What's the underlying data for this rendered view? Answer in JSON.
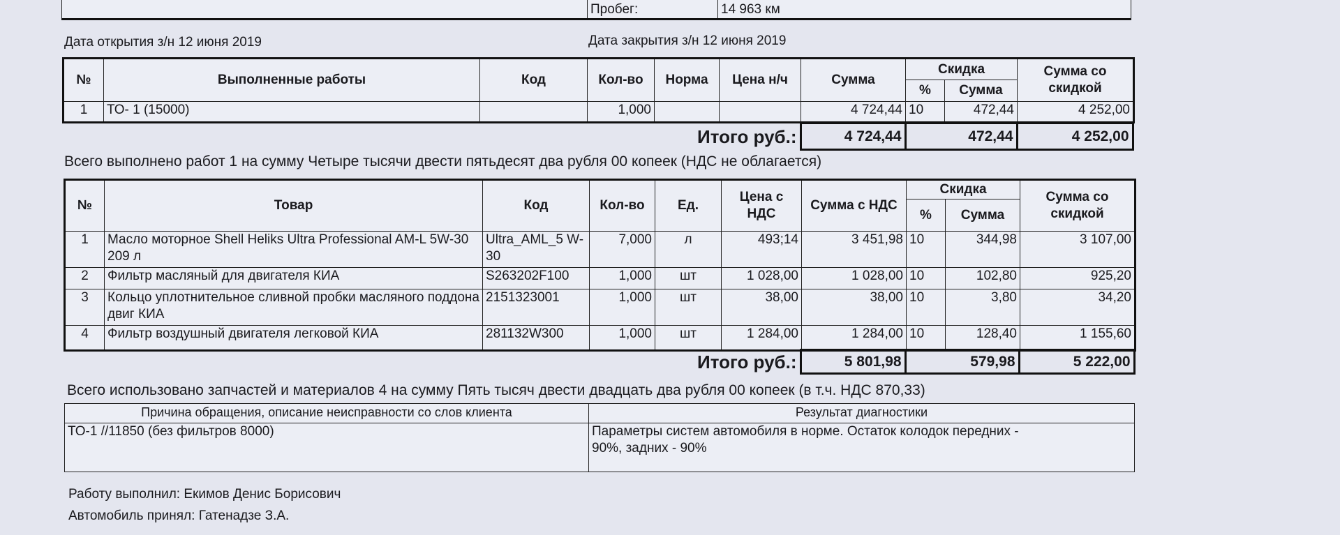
{
  "top": {
    "mileage_label": "Пробег:",
    "mileage_value": "14 963 км"
  },
  "dates": {
    "open": "Дата открытия з/н 12 июня 2019",
    "close": "Дата закрытия з/н 12 июня 2019"
  },
  "works": {
    "headers": {
      "num": "№",
      "name": "Выполненные работы",
      "code": "Код",
      "qty": "Кол-во",
      "norm": "Норма",
      "price": "Цена н/ч",
      "sum": "Сумма",
      "discount": "Скидка",
      "disc_pct": "%",
      "disc_sum": "Сумма",
      "sum_disc": "Сумма со скидкой"
    },
    "rows": [
      {
        "num": "1",
        "name": "ТО- 1 (15000)",
        "code": "",
        "qty": "1,000",
        "norm": "",
        "price": "",
        "sum": "4 724,44",
        "pct": "10",
        "disc": "472,44",
        "total": "4 252,00"
      }
    ],
    "total_label": "Итого руб.:",
    "total_sum": "4 724,44",
    "total_disc": "472,44",
    "total_final": "4 252,00",
    "summary": "Всего выполнено работ 1 на сумму Четыре тысячи двести пятьдесят два рубля 00 копеек (НДС не облагается)"
  },
  "goods": {
    "headers": {
      "num": "№",
      "name": "Товар",
      "code": "Код",
      "qty": "Кол-во",
      "unit": "Ед.",
      "price": "Цена с НДС",
      "sum": "Сумма с НДС",
      "discount": "Скидка",
      "disc_pct": "%",
      "disc_sum": "Сумма",
      "sum_disc": "Сумма со скидкой"
    },
    "rows": [
      {
        "num": "1",
        "name": "Масло моторное Shell Heliks Ultra Professional AM-L 5W-30 209 л",
        "code": "Ultra_AML_5 W-30",
        "qty": "7,000",
        "unit": "л",
        "price": "493;14",
        "sum": "3 451,98",
        "pct": "10",
        "disc": "344,98",
        "total": "3 107,00"
      },
      {
        "num": "2",
        "name": "Фильтр масляный для двигателя КИА",
        "code": "S263202F100",
        "qty": "1,000",
        "unit": "шт",
        "price": "1 028,00",
        "sum": "1 028,00",
        "pct": "10",
        "disc": "102,80",
        "total": "925,20"
      },
      {
        "num": "3",
        "name": "Кольцо уплотнительное сливной пробки масляного поддона двиг КИА",
        "code": "2151323001",
        "qty": "1,000",
        "unit": "шт",
        "price": "38,00",
        "sum": "38,00",
        "pct": "10",
        "disc": "3,80",
        "total": "34,20"
      },
      {
        "num": "4",
        "name": "Фильтр воздушный двигателя легковой КИА",
        "code": "281132W300",
        "qty": "1,000",
        "unit": "шт",
        "price": "1 284,00",
        "sum": "1 284,00",
        "pct": "10",
        "disc": "128,40",
        "total": "1 155,60"
      }
    ],
    "total_label": "Итого руб.:",
    "total_sum": "5 801,98",
    "total_disc": "579,98",
    "total_final": "5 222,00",
    "summary": "Всего использовано запчастей и материалов 4 на сумму Пять тысяч двести двадцать два рубля 00 копеек (в т.ч. НДС 870,33)"
  },
  "diagnostics": {
    "reason_header": "Причина обращения, описание неисправности со слов клиента",
    "result_header": "Результат диагностики",
    "reason": "ТО-1 //11850 (без фильтров 8000)",
    "result": "Параметры систем автомобиля в норме. Остаток колодок передних - 90%, задних - 90%"
  },
  "footer": {
    "performed_by": "Работу выполнил: Екимов Денис Борисович",
    "accepted_by": "Автомобиль принял: Гатенадзе З.А."
  }
}
